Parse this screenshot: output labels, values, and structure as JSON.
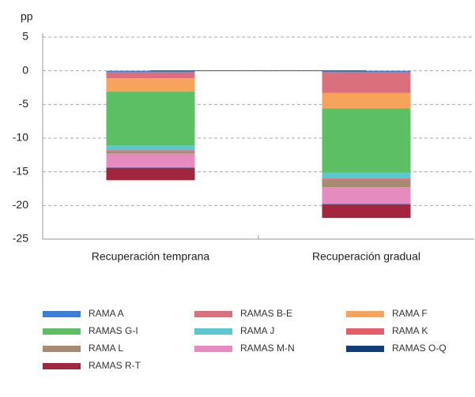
{
  "chart_data": {
    "type": "stacked_bar",
    "y_label": "pp",
    "categories": [
      "Recuperación temprana",
      "Recuperación gradual"
    ],
    "series": [
      {
        "name": "RAMA A",
        "color": "#3a7fd5",
        "values": [
          -0.2,
          -0.2
        ]
      },
      {
        "name": "RAMAS B-E",
        "color": "#d9707c",
        "values": [
          -0.9,
          -3.1
        ]
      },
      {
        "name": "RAMA F",
        "color": "#f7a35c",
        "values": [
          -2.0,
          -2.3
        ]
      },
      {
        "name": "RAMAS G-I",
        "color": "#5cbf63",
        "values": [
          -8.0,
          -9.5
        ]
      },
      {
        "name": "RAMA J",
        "color": "#5bc8d0",
        "values": [
          -0.7,
          -0.9
        ]
      },
      {
        "name": "RAMA K",
        "color": "#e85c6a",
        "values": [
          -0.1,
          -0.1
        ]
      },
      {
        "name": "RAMA L",
        "color": "#a88a72",
        "values": [
          -0.4,
          -1.2
        ]
      },
      {
        "name": "RAMAS M-N",
        "color": "#e58bbf",
        "values": [
          -2.1,
          -2.5
        ]
      },
      {
        "name": "RAMAS O-Q",
        "color": "#0e3d7a",
        "values": [
          -0.05,
          -0.05
        ]
      },
      {
        "name": "RAMAS R-T",
        "color": "#a3263f",
        "values": [
          -1.8,
          -2.0
        ]
      }
    ],
    "ylim": [
      -25,
      5
    ],
    "yticks": [
      -25,
      -20,
      -15,
      -10,
      -5,
      0,
      5
    ],
    "grid": true
  }
}
